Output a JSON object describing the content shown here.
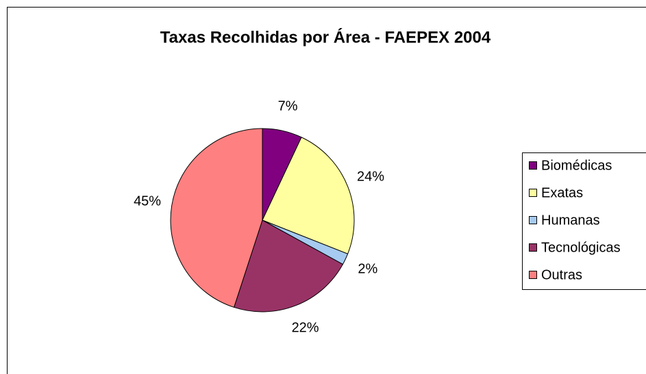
{
  "chart_data": {
    "type": "pie",
    "title": "Taxas Recolhidas por Área - FAEPEX 2004",
    "categories": [
      "Biomédicas",
      "Exatas",
      "Humanas",
      "Tecnológicas",
      "Outras"
    ],
    "values": [
      7,
      24,
      2,
      22,
      45
    ],
    "value_labels": [
      "7%",
      "24%",
      "2%",
      "22%",
      "45%"
    ],
    "colors": [
      "#800080",
      "#FFFFA0",
      "#A6CAF0",
      "#993366",
      "#FF8080"
    ],
    "legend": "right"
  }
}
